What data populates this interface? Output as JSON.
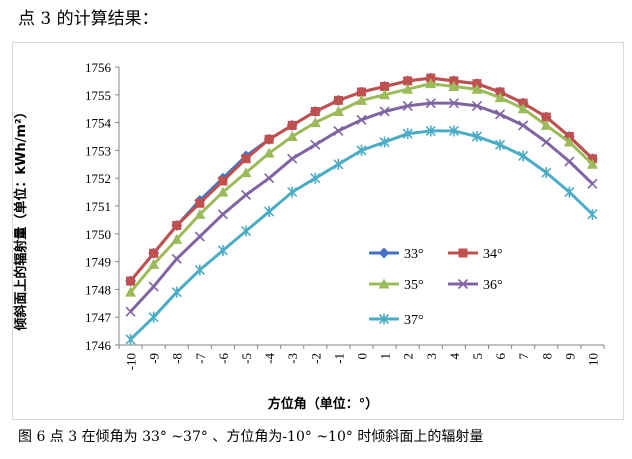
{
  "page": {
    "heading": "点 3 的计算结果：",
    "caption": "图 6 点 3  在倾角为 33°  ~37°  、方位角为-10°  ~10°  时倾斜面上的辐射量"
  },
  "chart_data": {
    "type": "line",
    "title": "",
    "xlabel": "方位角（单位：°）",
    "ylabel": "倾斜面上的辐射量（单位：kWh/m²）",
    "ylim": [
      1746,
      1756
    ],
    "yticks": [
      "1746",
      "1747",
      "1748",
      "1749",
      "1750",
      "1751",
      "1752",
      "1753",
      "1754",
      "1755",
      "1756"
    ],
    "x": [
      -10,
      -9,
      -8,
      -7,
      -6,
      -5,
      -4,
      -3,
      -2,
      -1,
      0,
      1,
      2,
      3,
      4,
      5,
      6,
      7,
      8,
      9,
      10
    ],
    "x_labels": [
      "-10",
      "-9",
      "-8",
      "-7",
      "-6",
      "-5",
      "-4",
      "-3",
      "-2",
      "-1",
      "0",
      "1",
      "2",
      "3",
      "4",
      "5",
      "6",
      "7",
      "8",
      "9",
      "10"
    ],
    "grid": false,
    "legend_position": "center-bottom inside plot",
    "series": [
      {
        "name": "33°",
        "color": "#4472c4",
        "marker": "diamond",
        "values": [
          1748.3,
          1749.3,
          1750.3,
          1751.2,
          1752.0,
          1752.8,
          1753.4,
          1753.9,
          1754.4,
          1754.8,
          1755.1,
          1755.3,
          1755.5,
          1755.6,
          1755.5,
          1755.4,
          1755.1,
          1754.7,
          1754.2,
          1753.5,
          1752.7
        ]
      },
      {
        "name": "34°",
        "color": "#c0504d",
        "marker": "square",
        "values": [
          1748.3,
          1749.3,
          1750.3,
          1751.1,
          1751.9,
          1752.7,
          1753.4,
          1753.9,
          1754.4,
          1754.8,
          1755.1,
          1755.3,
          1755.5,
          1755.6,
          1755.5,
          1755.4,
          1755.1,
          1754.7,
          1754.2,
          1753.5,
          1752.7
        ]
      },
      {
        "name": "35°",
        "color": "#9bbb59",
        "marker": "triangle",
        "values": [
          1747.9,
          1748.9,
          1749.8,
          1750.7,
          1751.5,
          1752.2,
          1752.9,
          1753.5,
          1754.0,
          1754.4,
          1754.8,
          1755.0,
          1755.2,
          1755.4,
          1755.3,
          1755.2,
          1754.9,
          1754.5,
          1753.9,
          1753.3,
          1752.5
        ]
      },
      {
        "name": "36°",
        "color": "#8064a2",
        "marker": "x",
        "values": [
          1747.2,
          1748.1,
          1749.1,
          1749.9,
          1750.7,
          1751.4,
          1752.0,
          1752.7,
          1753.2,
          1753.7,
          1754.1,
          1754.4,
          1754.6,
          1754.7,
          1754.7,
          1754.6,
          1754.3,
          1753.9,
          1753.3,
          1752.6,
          1751.8
        ]
      },
      {
        "name": "37°",
        "color": "#4bacc6",
        "marker": "star",
        "values": [
          1746.2,
          1747.0,
          1747.9,
          1748.7,
          1749.4,
          1750.1,
          1750.8,
          1751.5,
          1752.0,
          1752.5,
          1753.0,
          1753.3,
          1753.6,
          1753.7,
          1753.7,
          1753.5,
          1753.2,
          1752.8,
          1752.2,
          1751.5,
          1750.7
        ]
      }
    ]
  }
}
